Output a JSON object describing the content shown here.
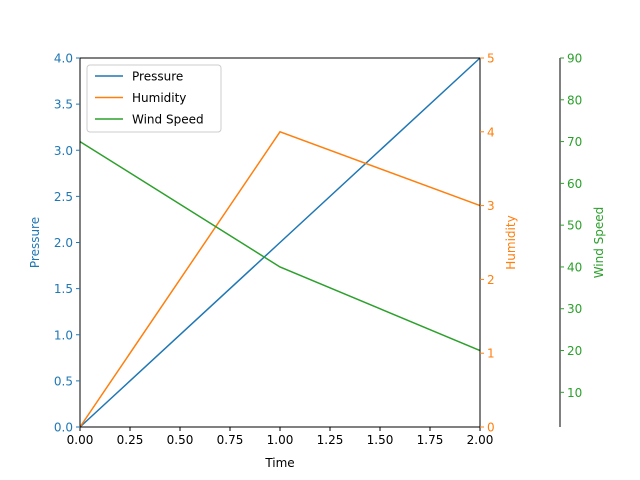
{
  "chart_data": {
    "type": "line",
    "title": "",
    "xlabel": "Time",
    "xlim": [
      0,
      2
    ],
    "xticks": [
      "0.00",
      "0.25",
      "0.50",
      "0.75",
      "1.00",
      "1.25",
      "1.50",
      "1.75",
      "2.00"
    ],
    "grid": false,
    "legend_position": "top-left",
    "axes": [
      {
        "key": "left",
        "label": "Pressure",
        "color": "#1f77b4",
        "ylim": [
          0,
          4
        ],
        "ticks": [
          "0.0",
          "0.5",
          "1.0",
          "1.5",
          "2.0",
          "2.5",
          "3.0",
          "3.5",
          "4.0"
        ]
      },
      {
        "key": "right1",
        "label": "Humidity",
        "color": "#ff7f0e",
        "ylim": [
          0,
          5
        ],
        "ticks": [
          "0",
          "1",
          "2",
          "3",
          "4",
          "5"
        ]
      },
      {
        "key": "right2",
        "label": "Wind Speed",
        "color": "#2ca02c",
        "ylim": [
          0,
          90
        ],
        "ticks": [
          "10",
          "20",
          "30",
          "40",
          "50",
          "60",
          "70",
          "80",
          "90"
        ]
      }
    ],
    "series": [
      {
        "name": "Pressure",
        "axis": "left",
        "color": "#1f77b4",
        "x": [
          0,
          1,
          2
        ],
        "y": [
          0,
          2,
          4
        ]
      },
      {
        "name": "Humidity",
        "axis": "right1",
        "color": "#ff7f0e",
        "x": [
          0,
          1,
          2
        ],
        "y": [
          0,
          4,
          3
        ]
      },
      {
        "name": "Wind Speed",
        "axis": "right2",
        "color": "#2ca02c",
        "x": [
          0,
          1,
          2
        ],
        "y": [
          70,
          40,
          20
        ]
      }
    ]
  }
}
